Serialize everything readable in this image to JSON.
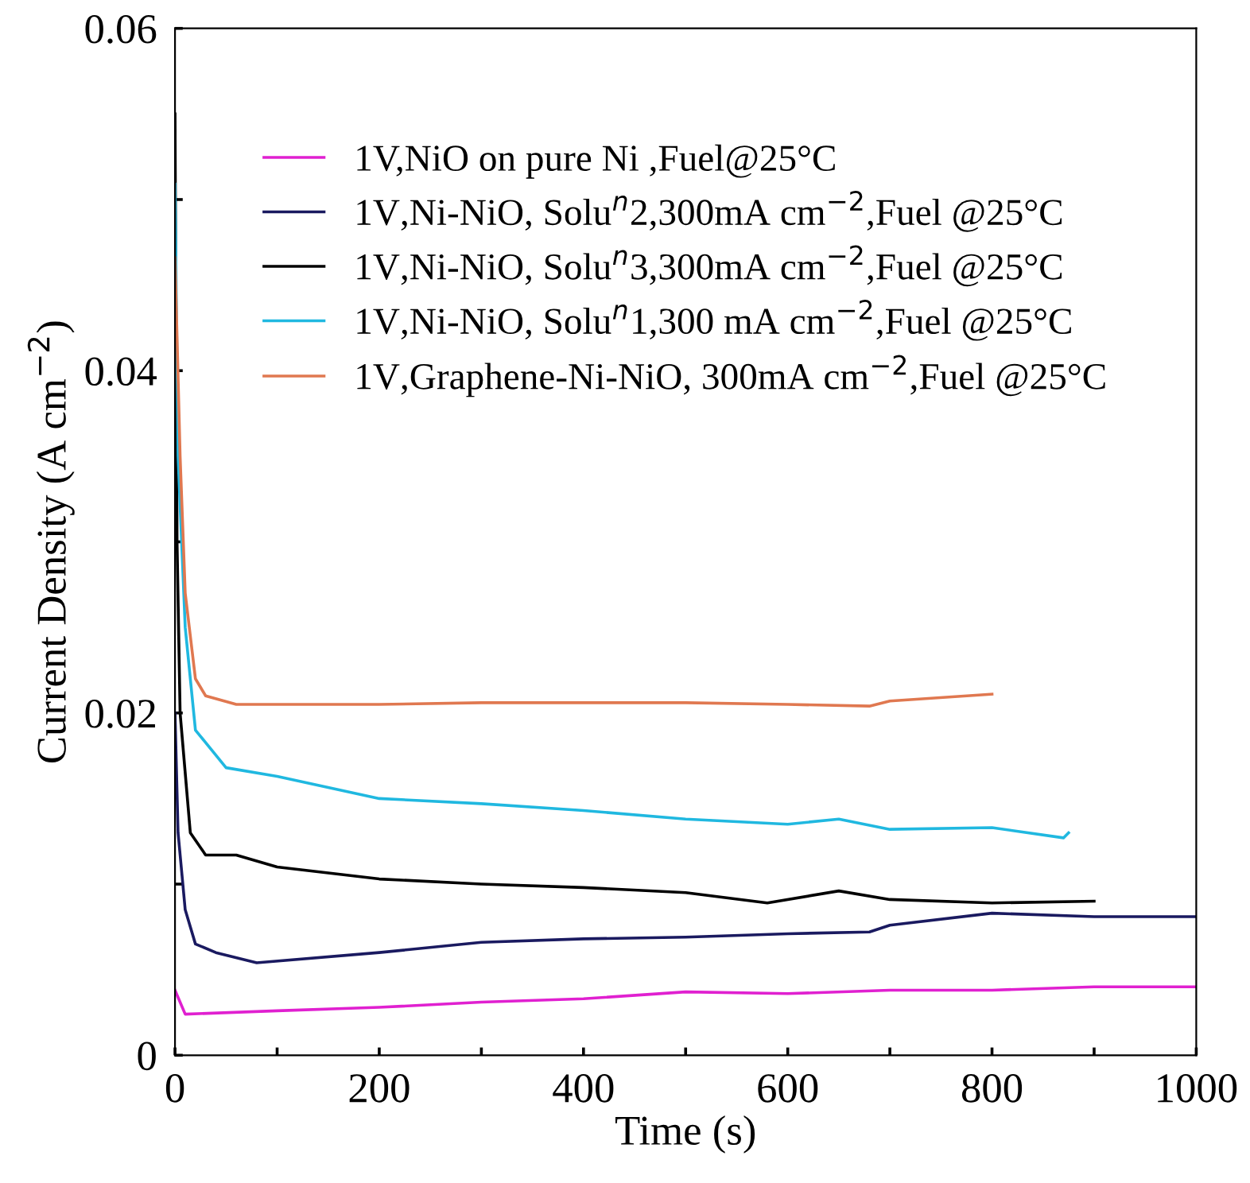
{
  "chart_data": {
    "type": "line",
    "xlabel": "Time (s)",
    "ylabel": "Current Density (A cm$^{−2}$)",
    "xlim": [
      0,
      1000
    ],
    "ylim": [
      0,
      0.06
    ],
    "xticks": [
      0,
      {
        "value": 100,
        "label": null
      },
      200,
      {
        "value": 300,
        "label": null
      },
      400,
      {
        "value": 500,
        "label": null
      },
      600,
      {
        "value": 700,
        "label": null
      },
      800,
      {
        "value": 900,
        "label": null
      },
      1000
    ],
    "yticks": [
      0,
      {
        "value": 0.01,
        "label": null
      },
      0.02,
      {
        "value": 0.03,
        "label": null
      },
      0.04,
      {
        "value": 0.05,
        "label": null
      },
      0.06
    ],
    "grid": false,
    "legend": "top",
    "marker": "none",
    "line_style": "solid",
    "series": [
      {
        "name": "1V,NiO on pure Ni ,Fuel@25°C",
        "color": "#e020d0",
        "x": [
          0,
          10,
          100,
          200,
          300,
          400,
          500,
          600,
          700,
          800,
          900,
          1000
        ],
        "values": [
          0.0038,
          0.0024,
          0.0026,
          0.0028,
          0.0031,
          0.0033,
          0.0037,
          0.0036,
          0.0038,
          0.0038,
          0.004,
          0.004
        ]
      },
      {
        "name": "1V,Ni-NiO, Solu$^{n}$2,300mA cm$^{−2}$,Fuel @25°C",
        "color": "#1a1a60",
        "x": [
          0,
          3,
          10,
          20,
          40,
          80,
          200,
          300,
          400,
          500,
          600,
          680,
          700,
          800,
          900,
          1000
        ],
        "values": [
          0.02,
          0.013,
          0.0085,
          0.0065,
          0.006,
          0.0054,
          0.006,
          0.0066,
          0.0068,
          0.0069,
          0.0071,
          0.0072,
          0.0076,
          0.0083,
          0.0081,
          0.0081
        ]
      },
      {
        "name": "1V,Ni-NiO, Solu$^{n}$3,300mA cm$^{−2}$,Fuel @25°C",
        "color": "#000000",
        "x": [
          0,
          2,
          5,
          15,
          30,
          60,
          100,
          200,
          300,
          400,
          500,
          580,
          650,
          700,
          800,
          900
        ],
        "values": [
          0.055,
          0.03,
          0.02,
          0.013,
          0.0117,
          0.0117,
          0.011,
          0.0103,
          0.01,
          0.0098,
          0.0095,
          0.0089,
          0.0096,
          0.0091,
          0.0089,
          0.009
        ]
      },
      {
        "name": "1V,Ni-NiO, Solu$^{n}$1,300 mA cm$^{−2}$,Fuel @25°C",
        "color": "#20b8e0",
        "x": [
          0,
          3,
          10,
          20,
          50,
          100,
          200,
          300,
          400,
          500,
          600,
          650,
          700,
          800,
          870,
          875
        ],
        "values": [
          0.0509,
          0.035,
          0.025,
          0.019,
          0.0168,
          0.0163,
          0.015,
          0.0147,
          0.0143,
          0.0138,
          0.0135,
          0.0138,
          0.0132,
          0.0133,
          0.0127,
          0.013
        ]
      },
      {
        "name": "1V,Graphene-Ni-NiO, 300mA cm$^{−2}$,Fuel @25°C",
        "color": "#e07850",
        "x": [
          0,
          5,
          10,
          20,
          30,
          60,
          100,
          200,
          300,
          400,
          500,
          600,
          680,
          700,
          800
        ],
        "values": [
          0.0466,
          0.035,
          0.027,
          0.022,
          0.021,
          0.0205,
          0.0205,
          0.0205,
          0.0206,
          0.0206,
          0.0206,
          0.0205,
          0.0204,
          0.0207,
          0.0211
        ]
      }
    ]
  }
}
